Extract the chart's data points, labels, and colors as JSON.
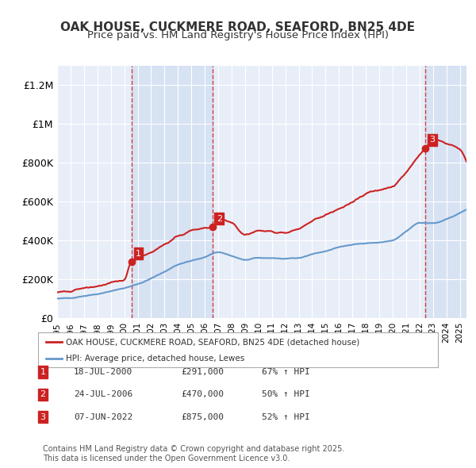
{
  "title": "OAK HOUSE, CUCKMERE ROAD, SEAFORD, BN25 4DE",
  "subtitle": "Price paid vs. HM Land Registry's House Price Index (HPI)",
  "ylabel_ticks": [
    "£0",
    "£200K",
    "£400K",
    "£600K",
    "£800K",
    "£1M",
    "£1.2M"
  ],
  "ytick_values": [
    0,
    200000,
    400000,
    600000,
    800000,
    1000000,
    1200000
  ],
  "ylim": [
    0,
    1300000
  ],
  "xlim_start": 1995.0,
  "xlim_end": 2025.5,
  "purchase_dates": [
    2000.54,
    2006.56,
    2022.44
  ],
  "purchase_prices": [
    291000,
    470000,
    875000
  ],
  "purchase_labels": [
    "1",
    "2",
    "3"
  ],
  "hpi_color": "#6699cc",
  "sale_color": "#cc2222",
  "background_color": "#e8eef8",
  "plot_bg_color": "#e8eef8",
  "grid_color": "#ffffff",
  "dashed_vline_color": "#cc2222",
  "legend_entries": [
    "OAK HOUSE, CUCKMERE ROAD, SEAFORD, BN25 4DE (detached house)",
    "HPI: Average price, detached house, Lewes"
  ],
  "table_rows": [
    [
      "1",
      "18-JUL-2000",
      "£291,000",
      "67% ↑ HPI"
    ],
    [
      "2",
      "24-JUL-2006",
      "£470,000",
      "50% ↑ HPI"
    ],
    [
      "3",
      "07-JUN-2022",
      "£875,000",
      "52% ↑ HPI"
    ]
  ],
  "footer_text": "Contains HM Land Registry data © Crown copyright and database right 2025.\nThis data is licensed under the Open Government Licence v3.0.",
  "xtick_years": [
    1995,
    1996,
    1997,
    1998,
    1999,
    2000,
    2001,
    2002,
    2003,
    2004,
    2005,
    2006,
    2007,
    2008,
    2009,
    2010,
    2011,
    2012,
    2013,
    2014,
    2015,
    2016,
    2017,
    2018,
    2019,
    2020,
    2021,
    2022,
    2023,
    2024,
    2025
  ]
}
